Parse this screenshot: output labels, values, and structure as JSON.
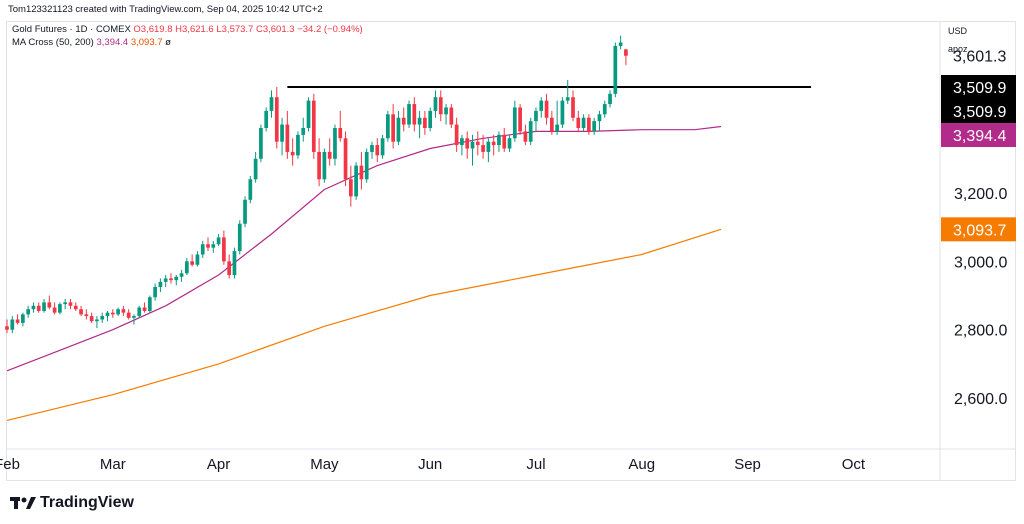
{
  "header": {
    "created_by": "Tom123321123 created with TradingView.com, Sep 04, 2025 10:42 UTC+2"
  },
  "legend": {
    "symbol": "Gold Futures · 1D · COMEX",
    "open": "O3,619.8",
    "high": "H3,621.6",
    "low": "L3,573.7",
    "close": "C3,601.3",
    "change": "−34.2 (−0.94%)",
    "indicator": "MA Cross (50, 200)",
    "ma50": "3,394.4",
    "ma200": "3,093.7",
    "indicator_suffix": "ø"
  },
  "scale": {
    "currency": "USD",
    "mode": "apoz"
  },
  "colors": {
    "up": "#089981",
    "down": "#f23645",
    "ma50": "#b22a8a",
    "ma200": "#f57c00",
    "level": "#000000"
  },
  "price_badges": [
    {
      "label": "3,601.3",
      "value": 3601.3,
      "style": "plain"
    },
    {
      "label": "3,509.9",
      "value": 3509.9,
      "style": "black"
    },
    {
      "label": "3,509.9",
      "value": 3509.9,
      "style": "black"
    },
    {
      "label": "3,394.4",
      "value": 3394.4,
      "style": "ma50"
    },
    {
      "label": "3,093.7",
      "value": 3093.7,
      "style": "ma200"
    }
  ],
  "branding": {
    "name": "TradingView"
  },
  "chart_data": {
    "type": "candlestick",
    "y_ticks": [
      {
        "label": "3,200.0",
        "value": 3200
      },
      {
        "label": "3,000.0",
        "value": 3000
      },
      {
        "label": "2,800.0",
        "value": 2800
      },
      {
        "label": "2,600.0",
        "value": 2600
      }
    ],
    "ylim": [
      2460,
      3700
    ],
    "x_ticks": [
      {
        "label": "Feb",
        "value": 0
      },
      {
        "label": "Mar",
        "value": 20
      },
      {
        "label": "Apr",
        "value": 40
      },
      {
        "label": "May",
        "value": 60
      },
      {
        "label": "Jun",
        "value": 80
      },
      {
        "label": "Jul",
        "value": 100
      },
      {
        "label": "Aug",
        "value": 120
      },
      {
        "label": "Sep",
        "value": 140
      },
      {
        "label": "Oct",
        "value": 160
      }
    ],
    "xlim": [
      0,
      176
    ],
    "resistance": {
      "value": 3509.9,
      "from": 53,
      "to": 152
    },
    "candles": [
      [
        2810,
        2830,
        2790,
        2800
      ],
      [
        2800,
        2840,
        2790,
        2830
      ],
      [
        2830,
        2845,
        2815,
        2820
      ],
      [
        2820,
        2850,
        2810,
        2845
      ],
      [
        2845,
        2870,
        2835,
        2860
      ],
      [
        2860,
        2880,
        2850,
        2870
      ],
      [
        2870,
        2880,
        2850,
        2855
      ],
      [
        2855,
        2890,
        2850,
        2880
      ],
      [
        2880,
        2900,
        2860,
        2865
      ],
      [
        2865,
        2880,
        2845,
        2850
      ],
      [
        2850,
        2880,
        2845,
        2875
      ],
      [
        2875,
        2890,
        2860,
        2880
      ],
      [
        2880,
        2890,
        2860,
        2870
      ],
      [
        2870,
        2880,
        2855,
        2860
      ],
      [
        2860,
        2870,
        2840,
        2845
      ],
      [
        2845,
        2860,
        2830,
        2840
      ],
      [
        2840,
        2850,
        2820,
        2825
      ],
      [
        2825,
        2840,
        2805,
        2830
      ],
      [
        2830,
        2850,
        2820,
        2840
      ],
      [
        2840,
        2855,
        2825,
        2850
      ],
      [
        2850,
        2860,
        2835,
        2845
      ],
      [
        2845,
        2865,
        2840,
        2860
      ],
      [
        2860,
        2870,
        2840,
        2850
      ],
      [
        2850,
        2860,
        2830,
        2835
      ],
      [
        2835,
        2845,
        2815,
        2840
      ],
      [
        2840,
        2870,
        2835,
        2865
      ],
      [
        2865,
        2880,
        2850,
        2855
      ],
      [
        2855,
        2900,
        2850,
        2895
      ],
      [
        2895,
        2935,
        2885,
        2925
      ],
      [
        2925,
        2950,
        2910,
        2940
      ],
      [
        2940,
        2960,
        2925,
        2950
      ],
      [
        2950,
        2965,
        2935,
        2945
      ],
      [
        2945,
        2960,
        2930,
        2955
      ],
      [
        2955,
        2975,
        2940,
        2965
      ],
      [
        2965,
        3010,
        2960,
        3000
      ],
      [
        3000,
        3020,
        2985,
        2990
      ],
      [
        2990,
        3030,
        2985,
        3020
      ],
      [
        3020,
        3060,
        3010,
        3050
      ],
      [
        3050,
        3070,
        3030,
        3040
      ],
      [
        3040,
        3060,
        3025,
        3050
      ],
      [
        3050,
        3080,
        3045,
        3070
      ],
      [
        3070,
        3090,
        2990,
        3000
      ],
      [
        3000,
        3020,
        2950,
        2960
      ],
      [
        2960,
        3040,
        2950,
        3030
      ],
      [
        3030,
        3120,
        3020,
        3110
      ],
      [
        3110,
        3190,
        3100,
        3180
      ],
      [
        3180,
        3250,
        3170,
        3240
      ],
      [
        3240,
        3320,
        3230,
        3300
      ],
      [
        3300,
        3400,
        3290,
        3390
      ],
      [
        3390,
        3450,
        3380,
        3440
      ],
      [
        3440,
        3500,
        3420,
        3480
      ],
      [
        3480,
        3510,
        3330,
        3350
      ],
      [
        3350,
        3420,
        3310,
        3400
      ],
      [
        3400,
        3440,
        3300,
        3320
      ],
      [
        3320,
        3360,
        3280,
        3310
      ],
      [
        3310,
        3380,
        3300,
        3370
      ],
      [
        3370,
        3420,
        3350,
        3390
      ],
      [
        3390,
        3480,
        3380,
        3470
      ],
      [
        3470,
        3490,
        3300,
        3320
      ],
      [
        3320,
        3360,
        3220,
        3240
      ],
      [
        3240,
        3330,
        3230,
        3320
      ],
      [
        3320,
        3360,
        3280,
        3300
      ],
      [
        3300,
        3400,
        3280,
        3390
      ],
      [
        3390,
        3440,
        3350,
        3360
      ],
      [
        3360,
        3380,
        3220,
        3240
      ],
      [
        3240,
        3280,
        3160,
        3190
      ],
      [
        3190,
        3290,
        3180,
        3280
      ],
      [
        3280,
        3320,
        3210,
        3240
      ],
      [
        3240,
        3330,
        3230,
        3320
      ],
      [
        3320,
        3350,
        3300,
        3340
      ],
      [
        3340,
        3360,
        3290,
        3310
      ],
      [
        3310,
        3370,
        3300,
        3360
      ],
      [
        3360,
        3440,
        3350,
        3430
      ],
      [
        3430,
        3460,
        3330,
        3350
      ],
      [
        3350,
        3440,
        3340,
        3420
      ],
      [
        3420,
        3450,
        3380,
        3400
      ],
      [
        3400,
        3470,
        3390,
        3460
      ],
      [
        3460,
        3480,
        3380,
        3400
      ],
      [
        3400,
        3440,
        3360,
        3420
      ],
      [
        3420,
        3440,
        3370,
        3390
      ],
      [
        3390,
        3450,
        3380,
        3440
      ],
      [
        3440,
        3500,
        3420,
        3480
      ],
      [
        3480,
        3500,
        3410,
        3430
      ],
      [
        3430,
        3460,
        3400,
        3450
      ],
      [
        3450,
        3460,
        3390,
        3400
      ],
      [
        3400,
        3420,
        3320,
        3340
      ],
      [
        3340,
        3370,
        3310,
        3360
      ],
      [
        3360,
        3380,
        3300,
        3330
      ],
      [
        3330,
        3370,
        3280,
        3350
      ],
      [
        3350,
        3380,
        3310,
        3340
      ],
      [
        3340,
        3370,
        3300,
        3320
      ],
      [
        3320,
        3360,
        3290,
        3350
      ],
      [
        3350,
        3370,
        3310,
        3340
      ],
      [
        3340,
        3380,
        3320,
        3370
      ],
      [
        3370,
        3390,
        3320,
        3330
      ],
      [
        3330,
        3370,
        3320,
        3360
      ],
      [
        3360,
        3470,
        3350,
        3450
      ],
      [
        3450,
        3460,
        3370,
        3380
      ],
      [
        3380,
        3400,
        3340,
        3350
      ],
      [
        3350,
        3420,
        3340,
        3410
      ],
      [
        3410,
        3450,
        3380,
        3440
      ],
      [
        3440,
        3480,
        3420,
        3470
      ],
      [
        3470,
        3490,
        3400,
        3420
      ],
      [
        3420,
        3440,
        3370,
        3380
      ],
      [
        3380,
        3470,
        3370,
        3400
      ],
      [
        3400,
        3480,
        3390,
        3470
      ],
      [
        3470,
        3530,
        3460,
        3480
      ],
      [
        3480,
        3500,
        3410,
        3420
      ],
      [
        3420,
        3440,
        3380,
        3390
      ],
      [
        3390,
        3430,
        3380,
        3420
      ],
      [
        3420,
        3430,
        3370,
        3380
      ],
      [
        3380,
        3420,
        3370,
        3410
      ],
      [
        3410,
        3440,
        3380,
        3430
      ],
      [
        3430,
        3470,
        3420,
        3460
      ],
      [
        3460,
        3500,
        3450,
        3490
      ],
      [
        3490,
        3640,
        3480,
        3630
      ],
      [
        3630,
        3660,
        3620,
        3640
      ],
      [
        3619.8,
        3621.6,
        3573.7,
        3601.3
      ]
    ],
    "series": [
      {
        "name": "MA 50",
        "points": [
          [
            0,
            2680
          ],
          [
            10,
            2740
          ],
          [
            20,
            2800
          ],
          [
            30,
            2870
          ],
          [
            40,
            2960
          ],
          [
            50,
            3080
          ],
          [
            60,
            3210
          ],
          [
            70,
            3280
          ],
          [
            80,
            3330
          ],
          [
            90,
            3360
          ],
          [
            100,
            3380
          ],
          [
            110,
            3380
          ],
          [
            120,
            3385
          ],
          [
            130,
            3385
          ],
          [
            135,
            3394.4
          ]
        ]
      },
      {
        "name": "MA 200",
        "points": [
          [
            0,
            2535
          ],
          [
            20,
            2610
          ],
          [
            40,
            2700
          ],
          [
            60,
            2810
          ],
          [
            80,
            2900
          ],
          [
            100,
            2960
          ],
          [
            120,
            3020
          ],
          [
            135,
            3093.7
          ]
        ]
      }
    ]
  }
}
